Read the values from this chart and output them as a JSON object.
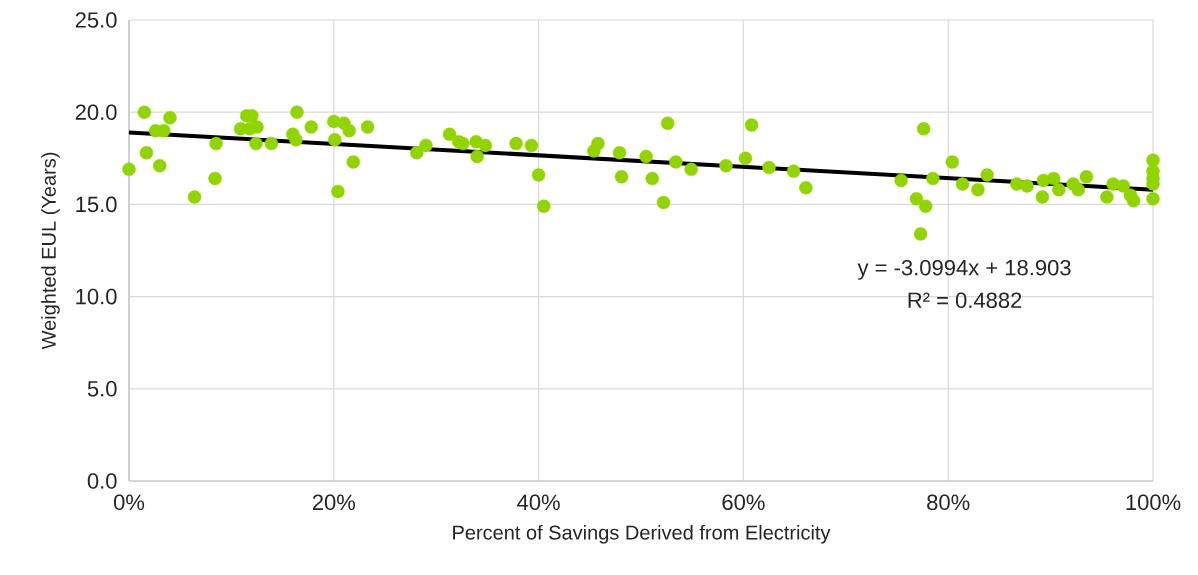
{
  "chart_data": {
    "type": "scatter",
    "xlabel": "Percent of Savings Derived from Electricity",
    "ylabel": "Weighted EUL (Years)",
    "xlim": [
      0,
      100
    ],
    "ylim": [
      0,
      25
    ],
    "xticks": [
      {
        "value": 0,
        "label": "0%"
      },
      {
        "value": 20,
        "label": "20%"
      },
      {
        "value": 40,
        "label": "40%"
      },
      {
        "value": 60,
        "label": "60%"
      },
      {
        "value": 80,
        "label": "80%"
      },
      {
        "value": 100,
        "label": "100%"
      }
    ],
    "yticks": [
      {
        "value": 0,
        "label": "0.0"
      },
      {
        "value": 5,
        "label": "5.0"
      },
      {
        "value": 10,
        "label": "10.0"
      },
      {
        "value": 15,
        "label": "15.0"
      },
      {
        "value": 20,
        "label": "20.0"
      },
      {
        "value": 25,
        "label": "25.0"
      }
    ],
    "grid": true,
    "marker": "circle",
    "series": [
      {
        "color": "#92d400",
        "x": [
          0.0,
          1.5,
          1.7,
          2.6,
          3.4,
          3.0,
          4.0,
          6.4,
          8.5,
          8.4,
          10.9,
          11.5,
          12.0,
          11.8,
          12.5,
          12.4,
          13.9,
          16.0,
          16.3,
          16.4,
          17.8,
          20.0,
          20.1,
          20.4,
          21.0,
          21.5,
          21.9,
          23.3,
          28.1,
          29.0,
          31.3,
          32.2,
          32.6,
          33.9,
          34.8,
          34.0,
          37.8,
          39.3,
          40.0,
          40.5,
          45.4,
          45.8,
          47.9,
          48.1,
          50.5,
          51.1,
          52.2,
          52.6,
          53.4,
          54.9,
          58.3,
          60.2,
          60.8,
          62.5,
          64.9,
          66.1,
          75.4,
          76.9,
          77.8,
          77.3,
          77.6,
          78.5,
          80.4,
          81.4,
          82.9,
          83.8,
          86.7,
          87.7,
          89.2,
          89.3,
          90.3,
          90.8,
          92.2,
          92.7,
          93.5,
          95.5,
          96.1,
          97.1,
          97.8,
          98.1,
          100,
          100,
          100,
          100,
          100
        ],
        "values": [
          16.9,
          20.0,
          17.8,
          19.0,
          19.0,
          17.1,
          19.7,
          15.4,
          18.3,
          16.4,
          19.1,
          19.8,
          19.8,
          19.1,
          19.2,
          18.3,
          18.3,
          18.8,
          18.5,
          20.0,
          19.2,
          19.5,
          18.5,
          15.7,
          19.4,
          19.0,
          17.3,
          19.2,
          17.8,
          18.2,
          18.8,
          18.4,
          18.3,
          18.4,
          18.2,
          17.6,
          18.3,
          18.2,
          16.6,
          14.9,
          17.9,
          18.3,
          17.8,
          16.5,
          17.6,
          16.4,
          15.1,
          19.4,
          17.3,
          16.9,
          17.1,
          17.5,
          19.3,
          17.0,
          16.8,
          15.9,
          16.3,
          15.3,
          14.9,
          13.4,
          19.1,
          16.4,
          17.3,
          16.1,
          15.8,
          16.6,
          16.1,
          16.0,
          15.4,
          16.3,
          16.4,
          15.8,
          16.1,
          15.8,
          16.5,
          15.4,
          16.1,
          16.0,
          15.5,
          15.2,
          17.4,
          16.8,
          16.4,
          16.1,
          15.3
        ]
      },
      {
        "type": "line",
        "color": "#000000",
        "marker": "none",
        "x": [
          0,
          100
        ],
        "values": [
          18.9,
          15.8
        ]
      }
    ],
    "annotations": [
      "y = -3.0994x + 18.903",
      "R² = 0.4882"
    ]
  }
}
